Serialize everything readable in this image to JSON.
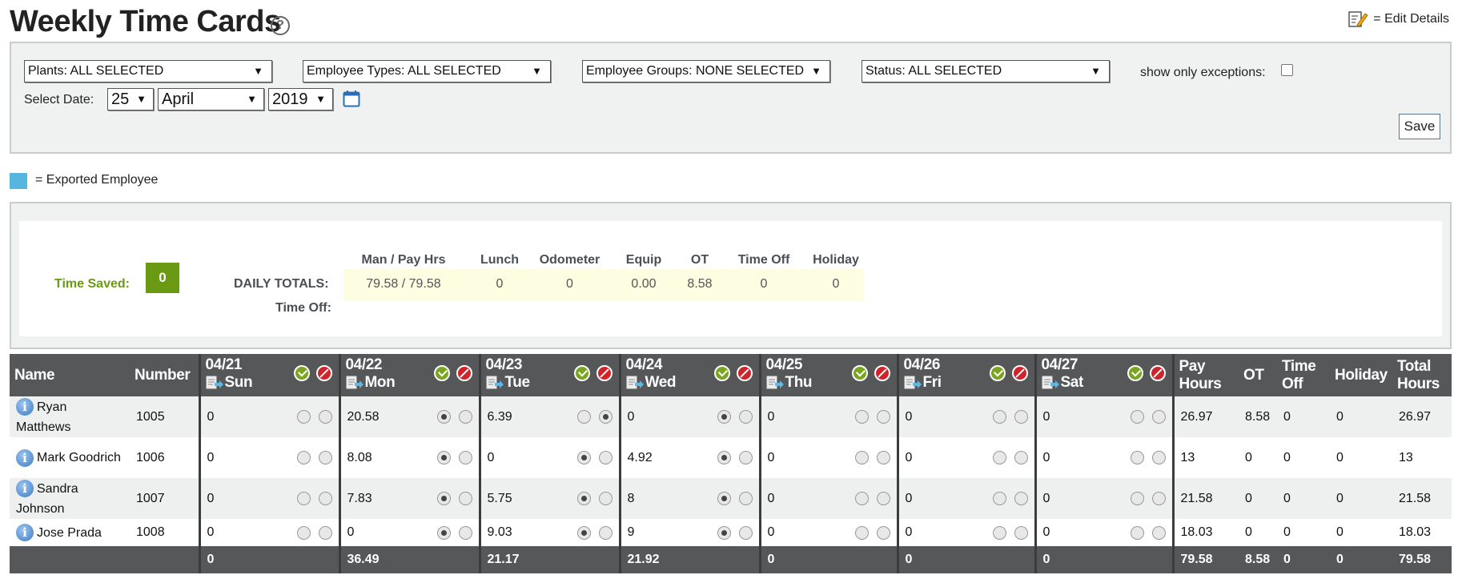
{
  "header": {
    "title": "Weekly Time Cards",
    "help_icon": "question-circle-icon",
    "edit_details_label": "= Edit Details",
    "edit_icon": "edit-pencil-icon"
  },
  "filters": {
    "plants": "Plants: ALL SELECTED",
    "employee_types": "Employee Types: ALL SELECTED",
    "employee_groups": "Employee Groups: NONE SELECTED",
    "status": "Status: ALL SELECTED",
    "exceptions_label": "show only exceptions:",
    "exceptions_checked": false,
    "select_date_label": "Select Date:",
    "day": "25",
    "month": "April",
    "year": "2019",
    "calendar_icon": "calendar-icon",
    "save_label": "Save"
  },
  "legend": {
    "color": "#56b6de",
    "label": "= Exported Employee"
  },
  "totals": {
    "time_saved_label": "Time Saved:",
    "time_saved_value": "0",
    "daily_totals_label": "DAILY TOTALS:",
    "time_off_label": "Time Off:",
    "columns": [
      "Man / Pay Hrs",
      "Lunch",
      "Odometer",
      "Equip",
      "OT",
      "Time Off",
      "Holiday"
    ],
    "values": [
      "79.58 / 79.58",
      "0",
      "0",
      "0.00",
      "8.58",
      "0",
      "0"
    ]
  },
  "grid": {
    "headers": {
      "name": "Name",
      "number": "Number",
      "pay_hours": "Pay Hours",
      "ot": "OT",
      "time_off": "Time Off",
      "holiday": "Holiday",
      "total_hours": "Total Hours"
    },
    "days": [
      {
        "date": "04/21",
        "day": "Sun"
      },
      {
        "date": "04/22",
        "day": "Mon"
      },
      {
        "date": "04/23",
        "day": "Tue"
      },
      {
        "date": "04/24",
        "day": "Wed"
      },
      {
        "date": "04/25",
        "day": "Thu"
      },
      {
        "date": "04/26",
        "day": "Fri"
      },
      {
        "date": "04/27",
        "day": "Sat"
      }
    ],
    "rows": [
      {
        "name": "Ryan Matthews",
        "number": "1005",
        "days": [
          {
            "v": "0",
            "r": [
              false,
              false
            ]
          },
          {
            "v": "20.58",
            "r": [
              true,
              false
            ]
          },
          {
            "v": "6.39",
            "r": [
              false,
              true
            ]
          },
          {
            "v": "0",
            "r": [
              true,
              false
            ]
          },
          {
            "v": "0",
            "r": [
              false,
              false
            ]
          },
          {
            "v": "0",
            "r": [
              false,
              false
            ]
          },
          {
            "v": "0",
            "r": [
              false,
              false
            ]
          }
        ],
        "pay_hours": "26.97",
        "ot": "8.58",
        "time_off": "0",
        "holiday": "0",
        "total_hours": "26.97"
      },
      {
        "name": "Mark Goodrich",
        "number": "1006",
        "days": [
          {
            "v": "0",
            "r": [
              false,
              false
            ]
          },
          {
            "v": "8.08",
            "r": [
              true,
              false
            ]
          },
          {
            "v": "0",
            "r": [
              true,
              false
            ]
          },
          {
            "v": "4.92",
            "r": [
              true,
              false
            ]
          },
          {
            "v": "0",
            "r": [
              false,
              false
            ]
          },
          {
            "v": "0",
            "r": [
              false,
              false
            ]
          },
          {
            "v": "0",
            "r": [
              false,
              false
            ]
          }
        ],
        "pay_hours": "13",
        "ot": "0",
        "time_off": "0",
        "holiday": "0",
        "total_hours": "13"
      },
      {
        "name": "Sandra Johnson",
        "number": "1007",
        "days": [
          {
            "v": "0",
            "r": [
              false,
              false
            ]
          },
          {
            "v": "7.83",
            "r": [
              true,
              false
            ]
          },
          {
            "v": "5.75",
            "r": [
              true,
              false
            ]
          },
          {
            "v": "8",
            "r": [
              true,
              false
            ]
          },
          {
            "v": "0",
            "r": [
              false,
              false
            ]
          },
          {
            "v": "0",
            "r": [
              false,
              false
            ]
          },
          {
            "v": "0",
            "r": [
              false,
              false
            ]
          }
        ],
        "pay_hours": "21.58",
        "ot": "0",
        "time_off": "0",
        "holiday": "0",
        "total_hours": "21.58"
      },
      {
        "name": "Jose Prada",
        "number": "1008",
        "days": [
          {
            "v": "0",
            "r": [
              false,
              false
            ]
          },
          {
            "v": "0",
            "r": [
              true,
              false
            ]
          },
          {
            "v": "9.03",
            "r": [
              true,
              false
            ]
          },
          {
            "v": "9",
            "r": [
              true,
              false
            ]
          },
          {
            "v": "0",
            "r": [
              false,
              false
            ]
          },
          {
            "v": "0",
            "r": [
              false,
              false
            ]
          },
          {
            "v": "0",
            "r": [
              false,
              false
            ]
          }
        ],
        "pay_hours": "18.03",
        "ot": "0",
        "time_off": "0",
        "holiday": "0",
        "total_hours": "18.03"
      }
    ],
    "footer": {
      "days": [
        "0",
        "36.49",
        "21.17",
        "21.92",
        "0",
        "0",
        "0"
      ],
      "pay_hours": "79.58",
      "ot": "8.58",
      "time_off": "0",
      "holiday": "0",
      "total_hours": "79.58"
    }
  }
}
